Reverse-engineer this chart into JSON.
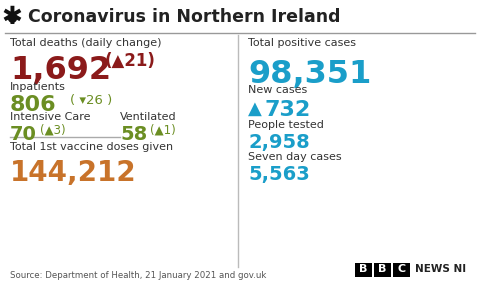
{
  "title": "Coronavirus in Northern Ireland",
  "title_color": "#222222",
  "bg_color": "#ffffff",
  "sections": {
    "total_deaths_label": "Total deaths (daily change)",
    "total_deaths_value": "1,692",
    "total_deaths_change": "(▲21)",
    "total_deaths_color": "#8b1a1a",
    "inpatients_label": "Inpatients",
    "inpatients_value": "806",
    "inpatients_change": "( ▾26 )",
    "inpatients_color": "#6b8e23",
    "intensive_label": "Intensive Care",
    "intensive_value": "70",
    "intensive_change": "(▲3)",
    "intensive_color": "#6b8e23",
    "ventilated_label": "Ventilated",
    "ventilated_value": "58",
    "ventilated_change": "(▲1)",
    "ventilated_color": "#6b8e23",
    "vaccine_label": "Total 1st vaccine doses given",
    "vaccine_value": "144,212",
    "vaccine_color": "#c8732a",
    "total_positive_label": "Total positive cases",
    "total_positive_value": "98,351",
    "total_positive_color": "#1a9ec9",
    "new_cases_label": "New cases",
    "new_cases_arrow": "▲",
    "new_cases_value": "732",
    "new_cases_color": "#1a9ec9",
    "people_tested_label": "People tested",
    "people_tested_value": "2,958",
    "people_tested_color": "#1a9ec9",
    "seven_day_label": "Seven day cases",
    "seven_day_value": "5,563",
    "seven_day_color": "#1a9ec9"
  },
  "source_text": "Source: Department of Health, 21 January 2021 and gov.uk",
  "label_color": "#333333",
  "line_color": "#999999",
  "divider_color": "#bbbbbb"
}
